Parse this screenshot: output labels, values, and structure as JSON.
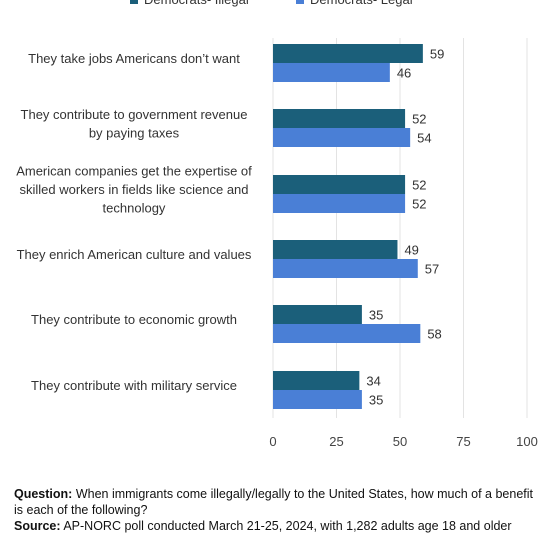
{
  "chart_data": {
    "type": "bar",
    "orientation": "horizontal",
    "categories": [
      "They take jobs Americans don’t want",
      "They contribute to government revenue by paying taxes",
      "American companies get the expertise of skilled workers in fields like science and technology",
      "They enrich American culture and values",
      "They contribute to economic growth",
      "They contribute with military service"
    ],
    "category_lines": [
      [
        "They take jobs Americans don’t want"
      ],
      [
        "They contribute to government revenue",
        "by paying taxes"
      ],
      [
        "American companies get the expertise of",
        "skilled workers in fields like science and",
        "technology"
      ],
      [
        "They enrich American culture and values"
      ],
      [
        "They contribute to economic growth"
      ],
      [
        "They contribute with military service"
      ]
    ],
    "series": [
      {
        "name": "Democrats- Illegal",
        "color": "#1b5f7a",
        "values": [
          59,
          52,
          52,
          49,
          35,
          34
        ]
      },
      {
        "name": "Democrats- Legal",
        "color": "#4a7fd6",
        "values": [
          46,
          54,
          52,
          57,
          58,
          35
        ]
      }
    ],
    "x_ticks": [
      0,
      25,
      50,
      75,
      100
    ],
    "xlim": [
      0,
      100
    ],
    "grid": true,
    "legend_position": "top"
  },
  "notes": {
    "question_label": "Question:",
    "question_text": "When immigrants come illegally/legally to the United States, how much of a benefit is each of the following?",
    "source_label": "Source:",
    "source_text": "AP-NORC poll conducted March 21-25, 2024, with 1,282 adults age 18 and older"
  }
}
